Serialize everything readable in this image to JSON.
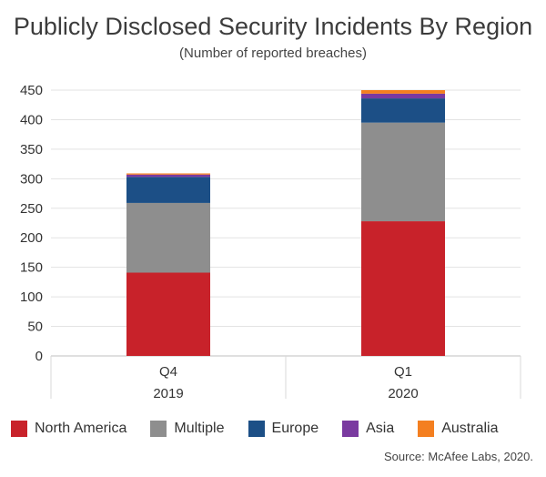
{
  "chart_data": {
    "type": "bar",
    "stacked": true,
    "title": "Publicly Disclosed Security Incidents By Region",
    "subtitle": "(Number of reported breaches)",
    "categories": [
      [
        "Q4",
        "2019"
      ],
      [
        "Q1",
        "2020"
      ]
    ],
    "series": [
      {
        "name": "North America",
        "color": "#c8222a",
        "values": [
          141,
          228
        ]
      },
      {
        "name": "Multiple",
        "color": "#8e8e8e",
        "values": [
          118,
          167
        ]
      },
      {
        "name": "Europe",
        "color": "#1c4f86",
        "values": [
          44,
          41
        ]
      },
      {
        "name": "Asia",
        "color": "#7a3aa0",
        "values": [
          4,
          8
        ]
      },
      {
        "name": "Australia",
        "color": "#f47f20",
        "values": [
          2,
          6
        ]
      }
    ],
    "yticks": [
      0,
      50,
      100,
      150,
      200,
      250,
      300,
      350,
      400,
      450
    ],
    "ylim": [
      0,
      450
    ],
    "grid": true,
    "legend_position": "bottom",
    "source": "Source: McAfee Labs, 2020."
  }
}
